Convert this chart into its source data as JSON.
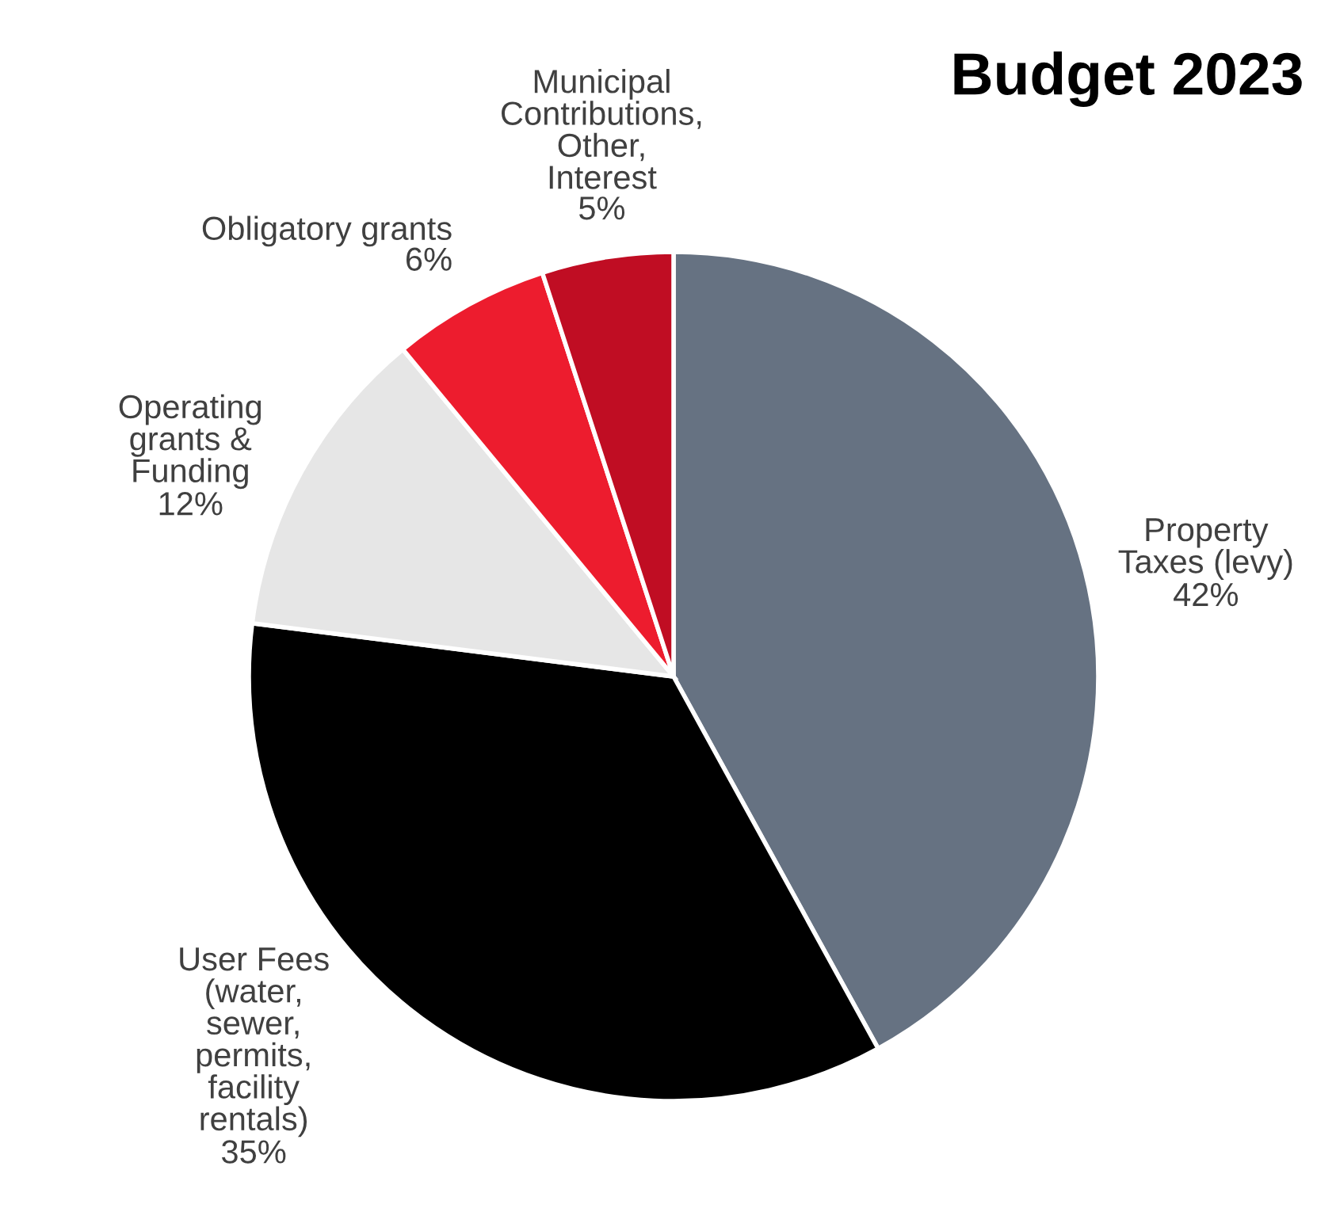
{
  "chart_data": {
    "type": "pie",
    "title": "Budget 2023",
    "categories": [
      "Property\nTaxes (levy)",
      "User Fees\n(water,\nsewer,\npermits,\nfacility\nrentals)",
      "Operating\ngrants &\nFunding",
      "Obligatory grants",
      "Municipal\nContributions,\nOther,\nInterest"
    ],
    "values": [
      42,
      35,
      12,
      6,
      5
    ],
    "value_labels": [
      "42%",
      "35%",
      "12%",
      "6%",
      "5%"
    ],
    "colors": [
      "#667282",
      "#000000",
      "#e6e6e6",
      "#ed1c2e",
      "#c00d23"
    ],
    "legend": false
  }
}
